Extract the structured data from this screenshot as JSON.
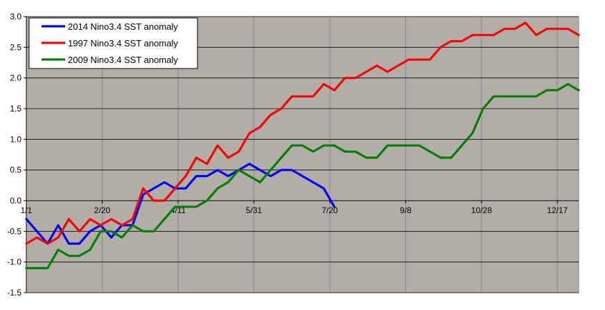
{
  "chart_data": {
    "type": "line",
    "title": "",
    "xlabel": "",
    "ylabel": "",
    "ylim": [
      -1.5,
      3.0
    ],
    "yticks": [
      "3.0",
      "2.5",
      "2.0",
      "1.5",
      "1.0",
      "0.5",
      "0.0",
      "-0.5",
      "-1.0",
      "-1.5"
    ],
    "ytick_values": [
      3.0,
      2.5,
      2.0,
      1.5,
      1.0,
      0.5,
      0.0,
      -0.5,
      -1.0,
      -1.5
    ],
    "x_unit": "day of year",
    "xlim": [
      1,
      365
    ],
    "xticks": [
      {
        "label": "1/1",
        "day": 1
      },
      {
        "label": "2/20",
        "day": 51
      },
      {
        "label": "4/11",
        "day": 101
      },
      {
        "label": "5/31",
        "day": 151
      },
      {
        "label": "7/20",
        "day": 201
      },
      {
        "label": "9/8",
        "day": 251
      },
      {
        "label": "10/28",
        "day": 301
      },
      {
        "label": "12/17",
        "day": 351
      }
    ],
    "grid": true,
    "legend_position": "top-left",
    "plot_background": "#B3ADA8",
    "series": [
      {
        "name": "2014 Nino3.4 SST anomaly",
        "color": "#0000FF",
        "x": [
          1,
          8,
          15,
          22,
          29,
          36,
          43,
          50,
          57,
          64,
          71,
          78,
          85,
          92,
          99,
          106,
          113,
          120,
          127,
          134,
          141,
          148,
          155,
          162,
          169,
          176,
          183,
          190,
          197,
          204
        ],
        "y": [
          -0.3,
          -0.5,
          -0.7,
          -0.4,
          -0.7,
          -0.7,
          -0.5,
          -0.4,
          -0.6,
          -0.4,
          -0.4,
          0.1,
          0.2,
          0.3,
          0.2,
          0.2,
          0.4,
          0.4,
          0.5,
          0.4,
          0.5,
          0.6,
          0.5,
          0.4,
          0.5,
          0.5,
          0.4,
          0.3,
          0.2,
          -0.1
        ]
      },
      {
        "name": "1997 Nino3.4 SST anomaly",
        "color": "#FF0000",
        "x": [
          1,
          8,
          15,
          22,
          29,
          36,
          43,
          50,
          57,
          64,
          71,
          78,
          85,
          92,
          99,
          106,
          113,
          120,
          127,
          134,
          141,
          148,
          155,
          162,
          169,
          176,
          183,
          190,
          197,
          204,
          211,
          218,
          225,
          232,
          239,
          246,
          253,
          260,
          267,
          274,
          281,
          288,
          295,
          302,
          309,
          316,
          323,
          330,
          337,
          344,
          351,
          358,
          365
        ],
        "y": [
          -0.7,
          -0.6,
          -0.7,
          -0.6,
          -0.3,
          -0.5,
          -0.3,
          -0.4,
          -0.3,
          -0.4,
          -0.3,
          0.2,
          0.0,
          0.0,
          0.2,
          0.4,
          0.7,
          0.6,
          0.9,
          0.7,
          0.8,
          1.1,
          1.2,
          1.4,
          1.5,
          1.7,
          1.7,
          1.7,
          1.9,
          1.8,
          2.0,
          2.0,
          2.1,
          2.2,
          2.1,
          2.2,
          2.3,
          2.3,
          2.3,
          2.5,
          2.6,
          2.6,
          2.7,
          2.7,
          2.7,
          2.8,
          2.8,
          2.9,
          2.7,
          2.8,
          2.8,
          2.8,
          2.7
        ]
      },
      {
        "name": "2009 Nino3.4 SST anomaly",
        "color": "#008000",
        "x": [
          1,
          8,
          15,
          22,
          29,
          36,
          43,
          50,
          57,
          64,
          71,
          78,
          85,
          92,
          99,
          106,
          113,
          120,
          127,
          134,
          141,
          148,
          155,
          162,
          169,
          176,
          183,
          190,
          197,
          204,
          211,
          218,
          225,
          232,
          239,
          246,
          253,
          260,
          267,
          274,
          281,
          288,
          295,
          302,
          309,
          316,
          323,
          330,
          337,
          344,
          351,
          358,
          365
        ],
        "y": [
          -1.1,
          -1.1,
          -1.1,
          -0.8,
          -0.9,
          -0.9,
          -0.8,
          -0.5,
          -0.5,
          -0.6,
          -0.4,
          -0.5,
          -0.5,
          -0.3,
          -0.1,
          -0.1,
          -0.1,
          0.0,
          0.2,
          0.3,
          0.5,
          0.4,
          0.3,
          0.5,
          0.7,
          0.9,
          0.9,
          0.8,
          0.9,
          0.9,
          0.8,
          0.8,
          0.7,
          0.7,
          0.9,
          0.9,
          0.9,
          0.9,
          0.8,
          0.7,
          0.7,
          0.9,
          1.1,
          1.5,
          1.7,
          1.7,
          1.7,
          1.7,
          1.7,
          1.8,
          1.8,
          1.9,
          1.8
        ]
      }
    ]
  }
}
